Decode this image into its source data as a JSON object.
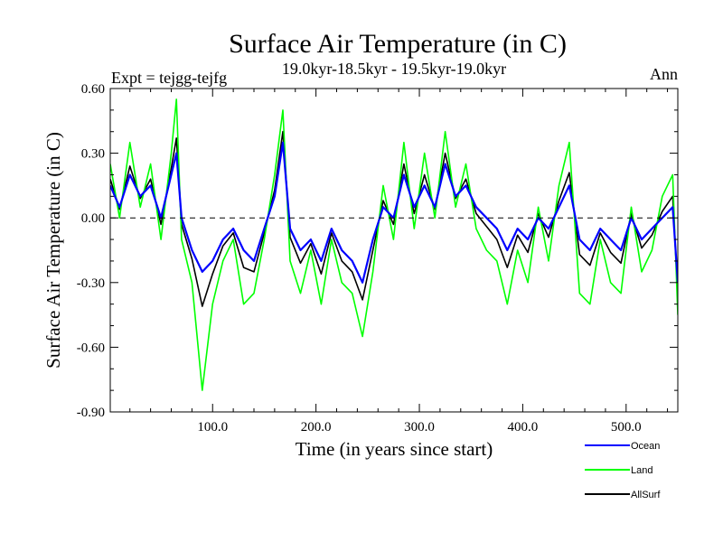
{
  "chart_data": {
    "type": "line",
    "title": "Surface Air Temperature (in C)",
    "subtitle_left": "Expt = tejgg-tejfg",
    "subtitle_center": "19.0kyr-18.5kyr - 19.5kyr-19.0kyr",
    "subtitle_right": "Ann",
    "xlabel": "Time (in years since start)",
    "ylabel": "Surface Air Temperature (in C)",
    "xlim": [
      1,
      550
    ],
    "ylim": [
      -0.9,
      0.6
    ],
    "x_ticks": [
      100,
      200,
      300,
      400,
      500
    ],
    "x_tick_labels": [
      "100.0",
      "200.0",
      "300.0",
      "400.0",
      "500.0"
    ],
    "y_ticks": [
      0.6,
      0.3,
      0.0,
      -0.3,
      -0.6,
      -0.9
    ],
    "y_tick_labels": [
      "0.60",
      "0.30",
      "0.00",
      "-0.30",
      "-0.60",
      "-0.90"
    ],
    "zero_line": true,
    "legend_position": "bottom-right, below plot",
    "series": [
      {
        "name": "Ocean",
        "color": "#0000ff",
        "x": [
          1,
          10,
          20,
          30,
          40,
          50,
          60,
          65,
          70,
          80,
          90,
          100,
          110,
          120,
          130,
          140,
          150,
          160,
          168,
          175,
          185,
          195,
          205,
          215,
          225,
          235,
          245,
          255,
          265,
          275,
          285,
          295,
          305,
          315,
          325,
          335,
          345,
          355,
          365,
          375,
          385,
          395,
          405,
          415,
          425,
          435,
          445,
          455,
          465,
          475,
          485,
          495,
          505,
          515,
          525,
          535,
          545,
          550
        ],
        "values": [
          0.15,
          0.05,
          0.2,
          0.1,
          0.15,
          0.0,
          0.2,
          0.3,
          0.0,
          -0.15,
          -0.25,
          -0.2,
          -0.1,
          -0.05,
          -0.15,
          -0.2,
          -0.05,
          0.1,
          0.35,
          -0.05,
          -0.15,
          -0.1,
          -0.2,
          -0.05,
          -0.15,
          -0.2,
          -0.3,
          -0.1,
          0.05,
          0.0,
          0.2,
          0.05,
          0.15,
          0.05,
          0.25,
          0.1,
          0.15,
          0.05,
          0.0,
          -0.05,
          -0.15,
          -0.05,
          -0.1,
          0.0,
          -0.05,
          0.05,
          0.15,
          -0.1,
          -0.15,
          -0.05,
          -0.1,
          -0.15,
          0.0,
          -0.1,
          -0.05,
          0.0,
          0.05,
          -0.3
        ]
      },
      {
        "name": "Land",
        "color": "#00ff00",
        "x": [
          1,
          10,
          20,
          30,
          40,
          50,
          60,
          65,
          70,
          80,
          90,
          100,
          110,
          120,
          130,
          140,
          150,
          160,
          168,
          175,
          185,
          195,
          205,
          215,
          225,
          235,
          245,
          255,
          265,
          275,
          285,
          295,
          305,
          315,
          325,
          335,
          345,
          355,
          365,
          375,
          385,
          395,
          405,
          415,
          425,
          435,
          445,
          455,
          465,
          475,
          485,
          495,
          505,
          515,
          525,
          535,
          545,
          550
        ],
        "values": [
          0.25,
          0.0,
          0.35,
          0.05,
          0.25,
          -0.1,
          0.3,
          0.55,
          -0.1,
          -0.3,
          -0.8,
          -0.4,
          -0.2,
          -0.1,
          -0.4,
          -0.35,
          -0.1,
          0.2,
          0.5,
          -0.2,
          -0.35,
          -0.15,
          -0.4,
          -0.1,
          -0.3,
          -0.35,
          -0.55,
          -0.25,
          0.15,
          -0.1,
          0.35,
          -0.05,
          0.3,
          0.0,
          0.4,
          0.05,
          0.25,
          -0.05,
          -0.15,
          -0.2,
          -0.4,
          -0.15,
          -0.3,
          0.05,
          -0.2,
          0.15,
          0.35,
          -0.35,
          -0.4,
          -0.1,
          -0.3,
          -0.35,
          0.05,
          -0.25,
          -0.15,
          0.1,
          0.2,
          -0.45
        ]
      },
      {
        "name": "AllSurf",
        "color": "#000000",
        "x": [
          1,
          10,
          20,
          30,
          40,
          50,
          60,
          65,
          70,
          80,
          90,
          100,
          110,
          120,
          130,
          140,
          150,
          160,
          168,
          175,
          185,
          195,
          205,
          215,
          225,
          235,
          245,
          255,
          265,
          275,
          285,
          295,
          305,
          315,
          325,
          335,
          345,
          355,
          365,
          375,
          385,
          395,
          405,
          415,
          425,
          435,
          445,
          455,
          465,
          475,
          485,
          495,
          505,
          515,
          525,
          535,
          545,
          550
        ],
        "values": [
          0.18,
          0.04,
          0.24,
          0.09,
          0.18,
          -0.03,
          0.23,
          0.37,
          -0.03,
          -0.19,
          -0.41,
          -0.26,
          -0.13,
          -0.07,
          -0.23,
          -0.25,
          -0.07,
          0.13,
          0.4,
          -0.09,
          -0.21,
          -0.12,
          -0.26,
          -0.07,
          -0.2,
          -0.25,
          -0.38,
          -0.15,
          0.08,
          -0.03,
          0.25,
          0.02,
          0.2,
          0.04,
          0.3,
          0.09,
          0.18,
          0.02,
          -0.04,
          -0.1,
          -0.23,
          -0.08,
          -0.16,
          0.02,
          -0.09,
          0.08,
          0.21,
          -0.17,
          -0.22,
          -0.07,
          -0.16,
          -0.21,
          0.02,
          -0.14,
          -0.08,
          0.03,
          0.1,
          -0.35
        ]
      }
    ]
  }
}
